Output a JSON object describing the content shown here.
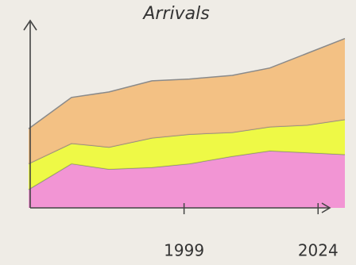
{
  "chart_data": {
    "type": "stacked-area",
    "title": "Arrivals",
    "x": [
      1970,
      1978,
      1985,
      1993,
      2000,
      2008,
      2015,
      2022,
      2029
    ],
    "xlim": [
      1970,
      2029
    ],
    "xticks": [
      1999,
      2024
    ],
    "ylim": [
      0,
      100
    ],
    "series": [
      {
        "color": "#f27fcf",
        "values": [
          10,
          24,
          21,
          22,
          24,
          28,
          31,
          30,
          29
        ]
      },
      {
        "color": "#eefc1e",
        "values": [
          14,
          11,
          12,
          16,
          16,
          13,
          13,
          15,
          19
        ]
      },
      {
        "color": "#f4b66c",
        "values": [
          19,
          25,
          30,
          31,
          30,
          31,
          32,
          39,
          44
        ]
      }
    ]
  }
}
